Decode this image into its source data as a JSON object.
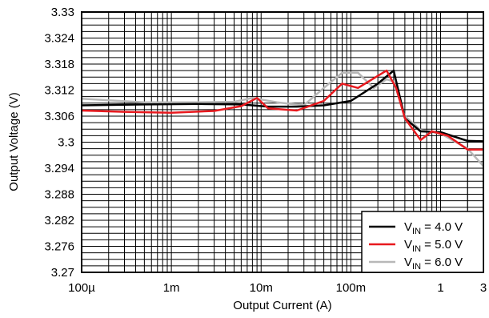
{
  "chart_data": {
    "type": "line",
    "xlabel": "Output Current (A)",
    "ylabel": "Output Voltage (V)",
    "xscale": "log",
    "xlim": [
      0.0001,
      3
    ],
    "ylim": [
      3.27,
      3.33
    ],
    "grid": true,
    "legend_position": "bottom-right",
    "x_ticks": [
      {
        "value": 0.0001,
        "label": "100µ"
      },
      {
        "value": 0.001,
        "label": "1m"
      },
      {
        "value": 0.01,
        "label": "10m"
      },
      {
        "value": 0.1,
        "label": "100m"
      },
      {
        "value": 1,
        "label": "1"
      },
      {
        "value": 3,
        "label": "3"
      }
    ],
    "y_ticks": [
      {
        "value": 3.27,
        "label": "3.27"
      },
      {
        "value": 3.276,
        "label": "3.276"
      },
      {
        "value": 3.282,
        "label": "3.282"
      },
      {
        "value": 3.288,
        "label": "3.288"
      },
      {
        "value": 3.294,
        "label": "3.294"
      },
      {
        "value": 3.3,
        "label": "3.3"
      },
      {
        "value": 3.306,
        "label": "3.306"
      },
      {
        "value": 3.312,
        "label": "3.312"
      },
      {
        "value": 3.318,
        "label": "3.318"
      },
      {
        "value": 3.324,
        "label": "3.324"
      },
      {
        "value": 3.33,
        "label": "3.33"
      }
    ],
    "series": [
      {
        "name": "V_IN = 4.0 V",
        "label_main": "V",
        "label_sub": "IN",
        "label_rest": " = 4.0 V",
        "color": "#000000",
        "x": [
          0.0001,
          0.0005,
          0.002,
          0.006,
          0.012,
          0.025,
          0.05,
          0.1,
          0.2,
          0.3,
          0.4,
          0.6,
          1.0,
          2.0,
          3.0
        ],
        "y": [
          3.3085,
          3.3087,
          3.3088,
          3.3087,
          3.3082,
          3.3082,
          3.3085,
          3.3095,
          3.3135,
          3.3165,
          3.3055,
          3.3025,
          3.3023,
          3.3003,
          3.3002
        ]
      },
      {
        "name": "V_IN = 5.0 V",
        "label_main": "V",
        "label_sub": "IN",
        "label_rest": " = 5.0 V",
        "color": "#e8191e",
        "x": [
          0.0001,
          0.0003,
          0.001,
          0.003,
          0.006,
          0.009,
          0.012,
          0.025,
          0.05,
          0.08,
          0.12,
          0.25,
          0.32,
          0.4,
          0.6,
          0.8,
          1.2,
          2.0,
          3.0
        ],
        "y": [
          3.3073,
          3.307,
          3.3068,
          3.3072,
          3.3083,
          3.3102,
          3.3078,
          3.3073,
          3.3095,
          3.3135,
          3.3125,
          3.3165,
          3.3125,
          3.3055,
          3.3005,
          3.3025,
          3.3015,
          3.2983,
          3.2983
        ]
      },
      {
        "name": "V_IN = 6.0 V",
        "label_main": "V",
        "label_sub": "IN",
        "label_rest": " = 6.0 V",
        "color": "#b8b8b8",
        "x": [
          0.0001,
          0.0005,
          0.002,
          0.005,
          0.008,
          0.015,
          0.03,
          0.05,
          0.08,
          0.12,
          0.18,
          0.25,
          0.3,
          0.4,
          0.6,
          1.0,
          2.0,
          3.0
        ],
        "y": [
          3.31,
          3.3092,
          3.3092,
          3.3093,
          3.3102,
          3.3092,
          3.3085,
          3.3125,
          3.316,
          3.316,
          3.3125,
          3.3145,
          3.314,
          3.306,
          3.3028,
          3.302,
          3.2985,
          3.2945
        ]
      }
    ]
  }
}
